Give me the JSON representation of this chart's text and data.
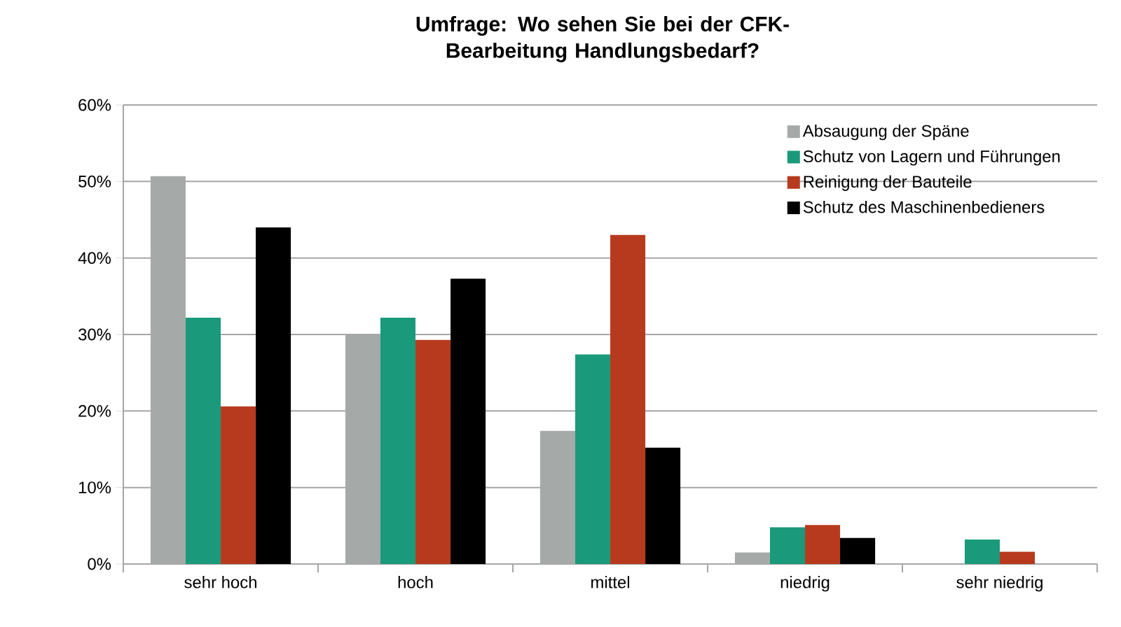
{
  "chart_data": {
    "type": "bar",
    "title": "Umfrage: Wo sehen Sie bei der CFK-Bearbeitung Handlungsbedarf?",
    "categories": [
      "sehr hoch",
      "hoch",
      "mittel",
      "niedrig",
      "sehr niedrig"
    ],
    "series": [
      {
        "name": "Absaugung der Späne",
        "color": "#a5aaa8",
        "values": [
          50.7,
          30.0,
          17.4,
          1.5,
          0
        ]
      },
      {
        "name": "Schutz von Lagern und Führungen",
        "color": "#1a9a7a",
        "values": [
          32.2,
          32.2,
          27.4,
          4.8,
          3.2
        ]
      },
      {
        "name": "Reinigung der Bauteile",
        "color": "#b83a1e",
        "values": [
          20.6,
          29.3,
          43.0,
          5.1,
          1.6
        ]
      },
      {
        "name": "Schutz des Maschinenbedieners",
        "color": "#000000",
        "values": [
          44.0,
          37.3,
          15.2,
          3.4,
          0
        ]
      }
    ],
    "ylim": [
      0,
      60
    ],
    "yticks": [
      {
        "value": 0,
        "label": "0%"
      },
      {
        "value": 10,
        "label": "10%"
      },
      {
        "value": 20,
        "label": "20%"
      },
      {
        "value": 30,
        "label": "30%"
      },
      {
        "value": 40,
        "label": "40%"
      },
      {
        "value": 50,
        "label": "50%"
      },
      {
        "value": 60,
        "label": "60%"
      }
    ],
    "grid": "y",
    "legend": "top right"
  }
}
